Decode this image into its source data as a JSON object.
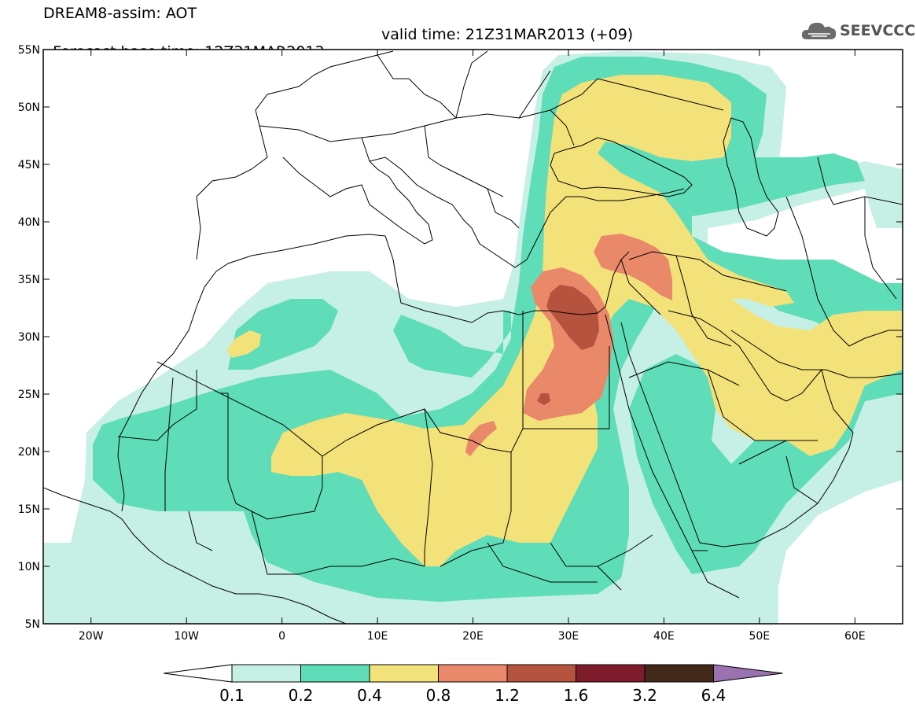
{
  "header": {
    "line1": "DREAM8-assim: AOT",
    "base_time": "Forecast base time: 12Z31MAR2013",
    "valid_time": "valid time: 21Z31MAR2013 (+09)"
  },
  "logo": {
    "text": "SEEVCCC",
    "icon": "cloud-icon"
  },
  "map": {
    "variable": "AOT",
    "lat_labels": [
      "55N",
      "50N",
      "45N",
      "40N",
      "35N",
      "30N",
      "25N",
      "20N",
      "15N",
      "10N",
      "5N"
    ],
    "lon_labels": [
      "20W",
      "10W",
      "0",
      "10E",
      "20E",
      "30E",
      "40E",
      "50E",
      "60E"
    ],
    "lat_range": [
      5,
      55
    ],
    "lon_range": [
      -25,
      65
    ]
  },
  "colorbar": {
    "labels": [
      "0.1",
      "0.2",
      "0.4",
      "0.8",
      "1.2",
      "1.6",
      "3.2",
      "6.4"
    ],
    "colors": [
      "#c6efe6",
      "#5fddb8",
      "#f3e17a",
      "#e9896a",
      "#b5533e",
      "#7d1b2b",
      "#42291a"
    ],
    "under_color": "#ffffff",
    "over_color": "#9b72b0"
  },
  "palette": {
    "c1": "#c6efe6",
    "c2": "#5fddb8",
    "c3": "#f3e17a",
    "c4": "#e9896a",
    "c5": "#b5533e"
  }
}
